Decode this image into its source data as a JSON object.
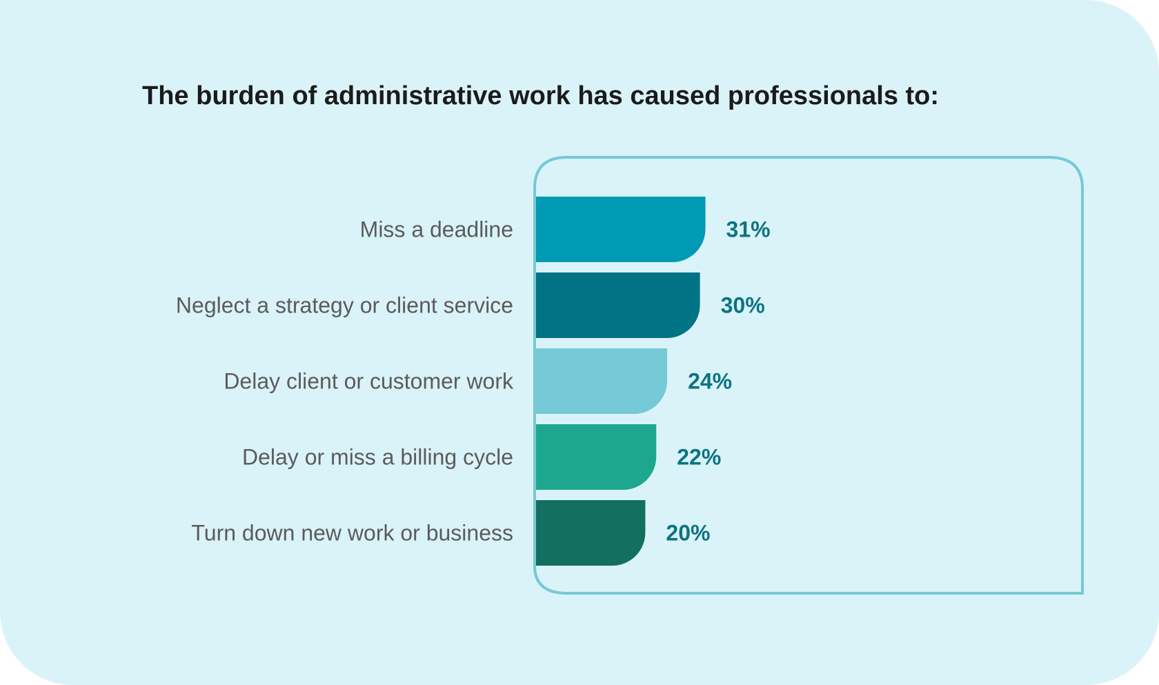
{
  "title": "The burden of administrative work has caused professionals to:",
  "colors": {
    "background": "#daf3f8",
    "frame": "#76c9d6",
    "title": "#1b1b1b",
    "category_label": "#5b5b5b",
    "value_label": "#0c7480"
  },
  "chart_data": {
    "type": "bar",
    "orientation": "horizontal",
    "title": "The burden of administrative work has caused professionals to:",
    "categories": [
      "Miss a deadline",
      "Neglect a strategy or client service",
      "Delay client or customer work",
      "Delay or miss a billing cycle",
      "Turn down new work or business"
    ],
    "values": [
      31,
      30,
      24,
      22,
      20
    ],
    "value_labels": [
      "31%",
      "30%",
      "24%",
      "22%",
      "20%"
    ],
    "bar_colors": [
      "#009ab4",
      "#007385",
      "#76c9d6",
      "#1da78f",
      "#136f5f"
    ],
    "unit": "%",
    "grid": false,
    "legend": "none"
  }
}
